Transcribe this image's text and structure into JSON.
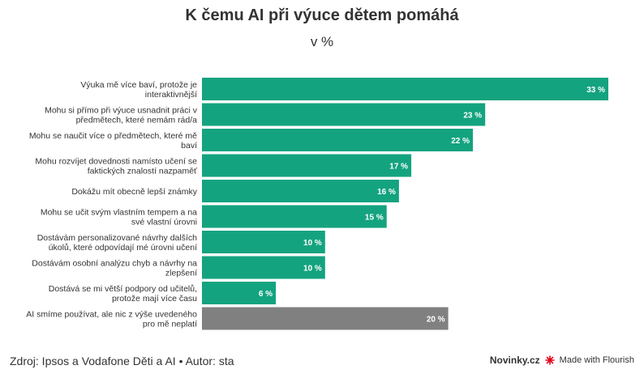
{
  "chart_data": {
    "type": "bar",
    "orientation": "horizontal",
    "title": "K čemu AI při výuce dětem pomáhá",
    "subtitle": "v %",
    "categories": [
      "Výuka mě více baví, protože je interaktivnější",
      "Mohu si přímo při výuce usnadnit práci v předmětech, které nemám rád/a",
      "Mohu se naučit více o předmětech, které mě baví",
      "Mohu rozvíjet dovednosti namísto učení se faktických znalostí nazpaměť",
      "Dokážu mít obecně lepší známky",
      "Mohu se učit svým vlastním tempem a na své vlastní úrovni",
      "Dostávám personalizované návrhy dalších úkolů, které odpovídají mé úrovni učení",
      "Dostávám osobní analýzu chyb a návrhy na zlepšení",
      "Dostává se mi větší podpory od učitelů, protože mají více času",
      "AI smíme používat, ale nic z výše uvedeného pro mě neplatí"
    ],
    "label_lines": [
      [
        "Výuka mě více baví, protože je",
        "interaktivnější"
      ],
      [
        "Mohu si přímo při výuce usnadnit práci v",
        "předmětech, které nemám rád/a"
      ],
      [
        "Mohu se naučit více o předmětech, které mě",
        "baví"
      ],
      [
        "Mohu rozvíjet dovednosti namísto učení se",
        "faktických znalostí nazpaměť"
      ],
      [
        "Dokážu mít obecně lepší známky"
      ],
      [
        "Mohu se učit svým vlastním tempem a na",
        "své vlastní úrovni"
      ],
      [
        "Dostávám personalizované návrhy dalších",
        "úkolů, které odpovídají mé úrovni učení"
      ],
      [
        "Dostávám osobní analýzu chyb a návrhy na",
        "zlepšení"
      ],
      [
        "Dostává se mi větší podpory od učitelů,",
        "protože mají více času"
      ],
      [
        "AI smíme používat, ale nic z výše uvedeného",
        "pro mě neplatí"
      ]
    ],
    "values": [
      33,
      23,
      22,
      17,
      16,
      15,
      10,
      10,
      6,
      20
    ],
    "value_labels": [
      "33 %",
      "23 %",
      "22 %",
      "17 %",
      "16 %",
      "15 %",
      "10 %",
      "10 %",
      "6 %",
      "20 %"
    ],
    "bar_colors": [
      "#14a37f",
      "#14a37f",
      "#14a37f",
      "#14a37f",
      "#14a37f",
      "#14a37f",
      "#14a37f",
      "#14a37f",
      "#14a37f",
      "#808080"
    ],
    "xlim": [
      0,
      33
    ],
    "grid": false,
    "legend": "none"
  },
  "footer": {
    "source": "Zdroj: Ipsos a Vodafone Děti a AI • Autor: sta",
    "brand": "Novinky.cz",
    "made_with": "Made with Flourish",
    "brand_color": "#e3001b"
  }
}
